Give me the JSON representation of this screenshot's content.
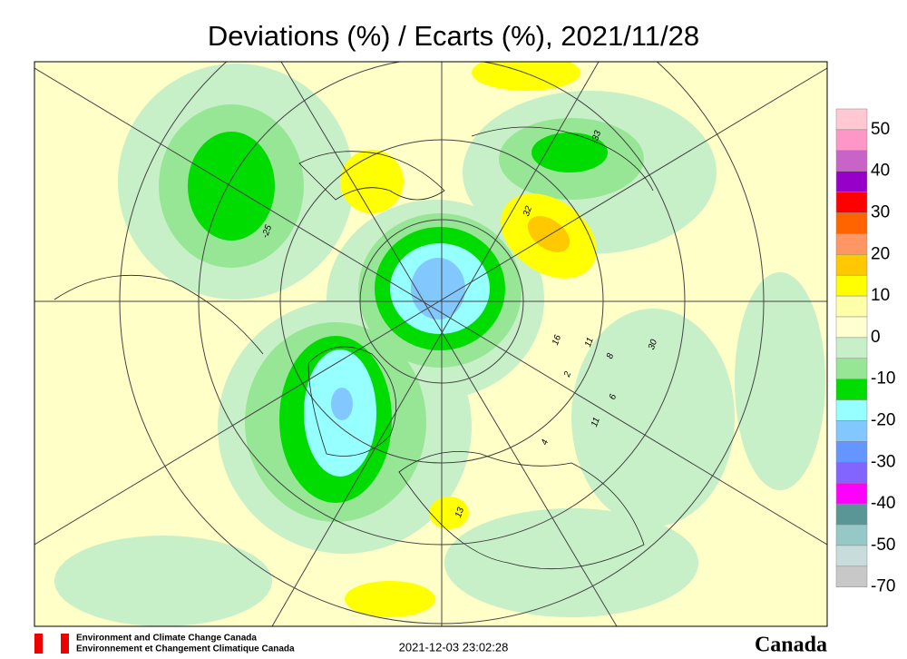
{
  "header": {
    "title": "Deviations (%) / Ecarts (%), 2021/11/28"
  },
  "map": {
    "labels": [
      "-25",
      "-33",
      "32",
      "16",
      "11",
      "8",
      "30",
      "2",
      "6",
      "11",
      "13",
      "4"
    ]
  },
  "legend": {
    "colors": [
      "#ffc8d2",
      "#ff96c8",
      "#c864c8",
      "#9600c8",
      "#ff0000",
      "#ff6400",
      "#ff9664",
      "#ffc800",
      "#ffff00",
      "#ffffaa",
      "#ffffd2",
      "#c8f0c8",
      "#96e696",
      "#00dc00",
      "#96ffff",
      "#82c8ff",
      "#6496ff",
      "#8264ff",
      "#ff00ff",
      "#5a9696",
      "#96c8c8",
      "#c8dcdc",
      "#c8c8c8"
    ],
    "labels": [
      50,
      40,
      30,
      20,
      10,
      0,
      -10,
      -20,
      -30,
      -40,
      -50,
      -70
    ]
  },
  "footer": {
    "agency_en": "Environment and Climate Change Canada",
    "agency_fr": "Environnement et Changement Climatique Canada",
    "timestamp": "2021-12-03 23:02:28",
    "wordmark": "Canada"
  }
}
